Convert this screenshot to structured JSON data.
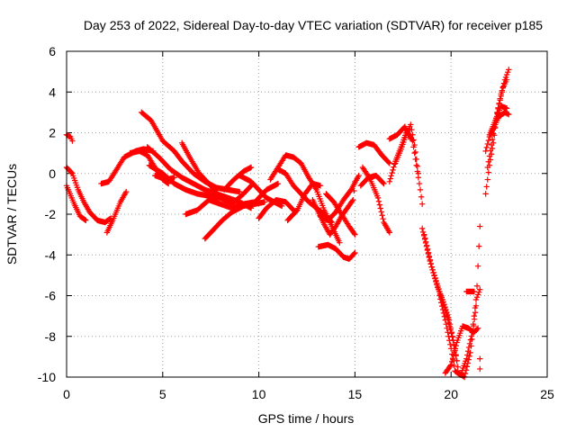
{
  "chart_data": {
    "type": "scatter",
    "title": "Day 253 of 2022, Sidereal Day-to-day VTEC variation (SDTVAR) for receiver p185",
    "xlabel": "GPS time / hours",
    "ylabel": "SDTVAR / TECUs",
    "xlim": [
      0,
      25
    ],
    "ylim": [
      -10,
      6
    ],
    "xticks": [
      0,
      5,
      10,
      15,
      20,
      25
    ],
    "yticks": [
      -10,
      -8,
      -6,
      -4,
      -2,
      0,
      2,
      4,
      6
    ],
    "grid": true,
    "marker": "+",
    "color": "#ff0000",
    "tracks": [
      [
        [
          0.0,
          1.9
        ],
        [
          0.2,
          1.8
        ],
        [
          0.3,
          1.6
        ]
      ],
      [
        [
          0.0,
          0.3
        ],
        [
          0.3,
          0.0
        ],
        [
          0.6,
          -0.8
        ],
        [
          0.9,
          -1.4
        ],
        [
          1.2,
          -1.9
        ],
        [
          1.6,
          -2.3
        ],
        [
          2.0,
          -2.4
        ],
        [
          2.3,
          -2.2
        ]
      ],
      [
        [
          0.0,
          -0.6
        ],
        [
          0.4,
          -1.5
        ],
        [
          0.7,
          -2.1
        ],
        [
          1.0,
          -2.3
        ]
      ],
      [
        [
          1.8,
          -0.5
        ],
        [
          2.2,
          -0.4
        ],
        [
          2.6,
          0.2
        ],
        [
          3.0,
          0.8
        ],
        [
          3.6,
          1.1
        ],
        [
          4.0,
          1.2
        ],
        [
          4.5,
          1.1
        ]
      ],
      [
        [
          2.1,
          -2.9
        ],
        [
          2.4,
          -2.3
        ],
        [
          2.8,
          -1.4
        ],
        [
          3.1,
          -0.9
        ]
      ],
      [
        [
          3.3,
          1.0
        ],
        [
          3.8,
          1.1
        ],
        [
          4.2,
          0.9
        ],
        [
          4.6,
          0.3
        ],
        [
          5.0,
          -0.3
        ],
        [
          5.3,
          -0.5
        ]
      ],
      [
        [
          3.9,
          3.0
        ],
        [
          4.4,
          2.6
        ],
        [
          5.0,
          1.6
        ],
        [
          5.6,
          1.1
        ],
        [
          6.0,
          0.6
        ],
        [
          6.6,
          0.0
        ],
        [
          7.2,
          -0.4
        ],
        [
          7.8,
          -0.7
        ],
        [
          8.4,
          -0.8
        ],
        [
          9.0,
          -0.9
        ]
      ],
      [
        [
          4.2,
          1.3
        ],
        [
          4.8,
          0.8
        ],
        [
          5.4,
          0.2
        ],
        [
          6.0,
          -0.2
        ],
        [
          6.6,
          -0.5
        ],
        [
          7.2,
          -0.8
        ],
        [
          7.8,
          -1.0
        ],
        [
          8.4,
          -1.2
        ],
        [
          9.0,
          -1.4
        ],
        [
          9.6,
          -1.7
        ]
      ],
      [
        [
          4.3,
          0.4
        ],
        [
          5.0,
          0.0
        ],
        [
          5.6,
          -0.5
        ],
        [
          6.2,
          -0.8
        ],
        [
          6.8,
          -1.0
        ],
        [
          7.4,
          -1.1
        ],
        [
          8.0,
          -1.2
        ]
      ],
      [
        [
          4.6,
          -0.1
        ],
        [
          5.2,
          -0.3
        ],
        [
          5.6,
          -0.2
        ]
      ],
      [
        [
          6.0,
          1.5
        ],
        [
          6.4,
          0.8
        ],
        [
          6.9,
          0.0
        ],
        [
          7.5,
          -0.6
        ],
        [
          8.0,
          -1.2
        ],
        [
          8.6,
          -1.5
        ],
        [
          9.2,
          -1.0
        ],
        [
          9.7,
          -0.5
        ]
      ],
      [
        [
          6.2,
          -2.0
        ],
        [
          6.8,
          -1.8
        ],
        [
          7.4,
          -1.3
        ],
        [
          8.0,
          -1.5
        ],
        [
          8.6,
          -1.7
        ],
        [
          9.2,
          -1.5
        ],
        [
          9.8,
          -1.4
        ],
        [
          10.4,
          -0.8
        ],
        [
          11.0,
          -0.5
        ]
      ],
      [
        [
          7.2,
          -3.2
        ],
        [
          7.6,
          -2.8
        ],
        [
          8.1,
          -2.3
        ],
        [
          8.6,
          -1.9
        ],
        [
          9.2,
          -1.6
        ],
        [
          9.8,
          -1.5
        ],
        [
          10.3,
          -1.4
        ]
      ],
      [
        [
          8.2,
          -0.8
        ],
        [
          8.7,
          -0.3
        ],
        [
          9.2,
          0.1
        ],
        [
          9.6,
          0.3
        ]
      ],
      [
        [
          9.0,
          -0.1
        ],
        [
          9.6,
          -0.4
        ],
        [
          10.0,
          -0.8
        ],
        [
          10.4,
          -1.2
        ],
        [
          10.8,
          -1.4
        ],
        [
          11.2,
          -1.6
        ]
      ],
      [
        [
          10.0,
          -2.2
        ],
        [
          10.4,
          -1.7
        ],
        [
          10.9,
          -1.3
        ],
        [
          11.4,
          -1.4
        ],
        [
          11.9,
          -1.9
        ]
      ],
      [
        [
          10.6,
          -0.3
        ],
        [
          11.0,
          0.3
        ],
        [
          11.4,
          0.9
        ],
        [
          11.8,
          0.8
        ],
        [
          12.2,
          0.5
        ],
        [
          12.6,
          -0.2
        ],
        [
          13.0,
          -0.8
        ],
        [
          13.4,
          -1.8
        ],
        [
          13.8,
          -2.6
        ],
        [
          14.2,
          -3.4
        ]
      ],
      [
        [
          11.0,
          0.2
        ],
        [
          11.4,
          0.0
        ],
        [
          11.8,
          -0.6
        ],
        [
          12.2,
          -1.0
        ],
        [
          12.6,
          -1.4
        ],
        [
          13.0,
          -1.7
        ],
        [
          13.4,
          -2.0
        ],
        [
          13.8,
          -2.4
        ]
      ],
      [
        [
          11.5,
          -2.3
        ],
        [
          12.0,
          -1.8
        ],
        [
          12.4,
          -1.0
        ],
        [
          12.8,
          -0.5
        ],
        [
          13.2,
          -0.6
        ]
      ],
      [
        [
          12.8,
          -1.3
        ],
        [
          13.1,
          -1.9
        ],
        [
          13.4,
          -2.5
        ],
        [
          13.7,
          -3.0
        ],
        [
          14.0,
          -2.6
        ],
        [
          14.3,
          -2.1
        ],
        [
          14.6,
          -1.7
        ],
        [
          14.9,
          -1.3
        ],
        [
          15.0,
          -0.4
        ]
      ],
      [
        [
          13.1,
          -3.6
        ],
        [
          13.6,
          -3.5
        ],
        [
          14.0,
          -3.7
        ],
        [
          14.4,
          -4.1
        ],
        [
          14.7,
          -4.2
        ],
        [
          15.0,
          -3.9
        ]
      ],
      [
        [
          13.2,
          -2.1
        ],
        [
          13.6,
          -2.3
        ],
        [
          14.0,
          -1.9
        ],
        [
          14.4,
          -1.3
        ],
        [
          14.8,
          -0.8
        ],
        [
          15.2,
          -0.1
        ]
      ],
      [
        [
          13.5,
          -1.0
        ],
        [
          13.9,
          -1.4
        ],
        [
          14.3,
          -2.0
        ],
        [
          14.7,
          -2.6
        ],
        [
          15.0,
          -3.0
        ]
      ],
      [
        [
          15.2,
          1.3
        ],
        [
          15.6,
          1.5
        ],
        [
          16.0,
          1.4
        ],
        [
          16.4,
          0.9
        ],
        [
          16.8,
          0.5
        ]
      ],
      [
        [
          15.4,
          0.3
        ],
        [
          15.8,
          -0.3
        ],
        [
          16.2,
          -1.2
        ],
        [
          16.5,
          -2.4
        ],
        [
          16.8,
          -2.9
        ]
      ],
      [
        [
          15.3,
          -0.6
        ],
        [
          15.7,
          -0.2
        ],
        [
          16.1,
          -0.1
        ],
        [
          16.5,
          -0.5
        ]
      ],
      [
        [
          16.8,
          -0.4
        ],
        [
          17.1,
          0.6
        ],
        [
          17.4,
          1.3
        ],
        [
          17.7,
          2.1
        ],
        [
          18.0,
          1.6
        ],
        [
          18.2,
          0.4
        ],
        [
          18.4,
          -0.8
        ],
        [
          18.5,
          -1.5
        ]
      ],
      [
        [
          16.8,
          1.7
        ],
        [
          17.2,
          1.9
        ],
        [
          17.6,
          2.3
        ],
        [
          17.9,
          1.7
        ]
      ],
      [
        [
          17.1,
          0.5
        ],
        [
          17.4,
          1.2
        ],
        [
          17.7,
          2.0
        ],
        [
          17.9,
          2.4
        ],
        [
          18.1,
          1.4
        ],
        [
          18.3,
          0.0
        ]
      ],
      [
        [
          18.5,
          -2.7
        ],
        [
          18.9,
          -4.3
        ],
        [
          19.3,
          -5.6
        ],
        [
          19.6,
          -6.3
        ],
        [
          19.9,
          -7.2
        ],
        [
          20.2,
          -8.6
        ],
        [
          20.4,
          -9.8
        ],
        [
          20.7,
          -10.0
        ],
        [
          21.0,
          -8.8
        ],
        [
          21.3,
          -6.5
        ],
        [
          21.5,
          -2.6
        ]
      ],
      [
        [
          18.6,
          -3.0
        ],
        [
          19.0,
          -4.6
        ],
        [
          19.4,
          -5.8
        ],
        [
          19.8,
          -7.0
        ],
        [
          20.1,
          -8.2
        ],
        [
          20.3,
          -9.2
        ]
      ],
      [
        [
          19.4,
          -6.0
        ],
        [
          19.7,
          -7.2
        ],
        [
          20.0,
          -8.6
        ],
        [
          20.2,
          -9.7
        ],
        [
          20.5,
          -9.9
        ],
        [
          20.8,
          -9.1
        ],
        [
          21.1,
          -7.8
        ],
        [
          21.3,
          -6.2
        ],
        [
          21.5,
          -5.7
        ]
      ],
      [
        [
          19.7,
          -9.8
        ],
        [
          20.0,
          -9.4
        ],
        [
          20.3,
          -8.3
        ],
        [
          20.6,
          -7.5
        ],
        [
          20.9,
          -7.6
        ],
        [
          21.2,
          -7.8
        ],
        [
          21.4,
          -7.6
        ]
      ],
      [
        [
          20.8,
          -5.8
        ],
        [
          21.2,
          -5.8
        ]
      ],
      [
        [
          21.5,
          -9.1
        ],
        [
          21.5,
          -9.6
        ]
      ],
      [
        [
          21.8,
          -1.0
        ],
        [
          22.0,
          0.4
        ],
        [
          22.2,
          1.5
        ],
        [
          22.4,
          3.0
        ],
        [
          22.6,
          3.9
        ],
        [
          22.8,
          4.6
        ],
        [
          23.0,
          5.1
        ]
      ],
      [
        [
          21.9,
          0.3
        ],
        [
          22.1,
          1.4
        ],
        [
          22.3,
          2.5
        ],
        [
          22.5,
          3.4
        ],
        [
          22.7,
          4.2
        ],
        [
          22.9,
          4.6
        ]
      ],
      [
        [
          21.8,
          1.1
        ],
        [
          22.0,
          1.8
        ],
        [
          22.3,
          2.4
        ],
        [
          22.5,
          2.8
        ],
        [
          22.8,
          3.0
        ],
        [
          23.0,
          2.9
        ]
      ],
      [
        [
          22.0,
          1.9
        ],
        [
          22.3,
          2.6
        ],
        [
          22.6,
          3.3
        ],
        [
          22.9,
          3.2
        ]
      ]
    ]
  }
}
